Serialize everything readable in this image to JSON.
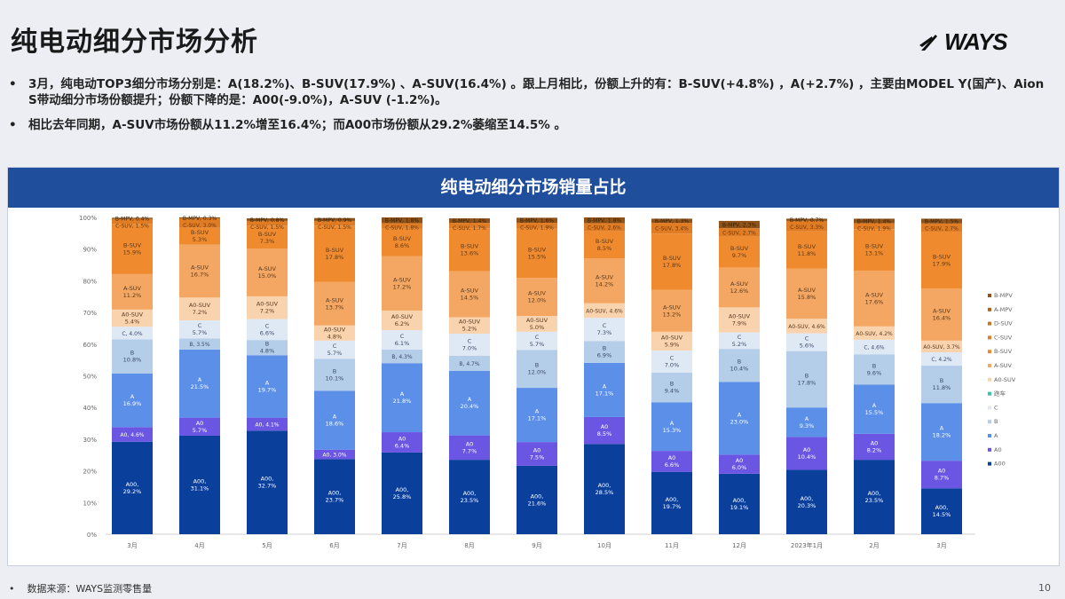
{
  "header": {
    "title": "纯电动细分市场分析",
    "logo_text": "WAYS"
  },
  "bullets": [
    "3月，纯电动TOP3细分市场分别是：A(18.2%)、B-SUV(17.9%) 、A-SUV(16.4%) 。跟上月相比，份额上升的有：B-SUV(+4.8%) ，A(+2.7%) ，主要由MODEL Y(国产)、Aion S带动细分市场份额提升；份额下降的是：A00(-9.0%)，A-SUV (-1.2%)。",
    "相比去年同期，A-SUV市场份额从11.2%增至16.4%；而A00市场份额从29.2%萎缩至14.5% 。"
  ],
  "footer": {
    "source": "数据来源：WAYS监测零售量",
    "page": "10"
  },
  "chart_data": {
    "type": "bar",
    "stacked": true,
    "title": "纯电动细分市场销量占比",
    "xlabel": "",
    "ylabel": "",
    "ylim": [
      0,
      100
    ],
    "yticks": [
      "0%",
      "10%",
      "20%",
      "30%",
      "40%",
      "50%",
      "60%",
      "70%",
      "80%",
      "90%",
      "100%"
    ],
    "legend_position": "right",
    "legend": [
      "B-MPV",
      "A-MPV",
      "D-SUV",
      "C-SUV",
      "B-SUV",
      "A-SUV",
      "A0-SUV",
      "跑车",
      "C",
      "B",
      "A",
      "A0",
      "A00"
    ],
    "colors": {
      "A00": "#0b3f9c",
      "A0": "#6b55e3",
      "A": "#5c8fe8",
      "B": "#b4cde9",
      "C": "#dfe9f6",
      "跑车": "#35c4a8",
      "A0-SUV": "#f8d3ae",
      "A-SUV": "#f4a762",
      "B-SUV": "#ef8b2e",
      "C-SUV": "#e07c24",
      "D-SUV": "#c8742a",
      "A-MPV": "#b0651e",
      "B-MPV": "#8f531a"
    },
    "categories": [
      "3月",
      "4月",
      "5月",
      "6月",
      "7月",
      "8月",
      "9月",
      "10月",
      "11月",
      "12月",
      "2023年1月",
      "2月",
      "3月"
    ],
    "series": [
      {
        "name": "A00",
        "values": [
          29.2,
          31.1,
          32.7,
          23.7,
          25.8,
          23.5,
          21.6,
          28.5,
          19.7,
          19.1,
          20.3,
          23.5,
          14.5
        ]
      },
      {
        "name": "A0",
        "values": [
          4.6,
          5.7,
          4.1,
          3.0,
          6.4,
          7.7,
          7.5,
          8.5,
          6.6,
          6.0,
          10.4,
          8.2,
          8.7
        ]
      },
      {
        "name": "A",
        "values": [
          16.9,
          21.5,
          19.7,
          18.6,
          21.8,
          20.4,
          17.1,
          17.1,
          15.3,
          23.0,
          9.3,
          15.5,
          18.2
        ]
      },
      {
        "name": "B",
        "values": [
          10.8,
          3.5,
          4.8,
          10.1,
          4.3,
          4.7,
          12.0,
          6.9,
          9.4,
          10.4,
          17.8,
          9.6,
          11.8
        ]
      },
      {
        "name": "C",
        "values": [
          4.0,
          5.7,
          6.6,
          5.7,
          6.1,
          7.0,
          5.7,
          7.3,
          7.0,
          5.2,
          5.6,
          4.6,
          4.2
        ]
      },
      {
        "name": "A0-SUV",
        "values": [
          5.4,
          7.2,
          7.2,
          4.8,
          6.2,
          5.2,
          5.0,
          4.6,
          5.9,
          7.9,
          4.6,
          4.2,
          3.7
        ]
      },
      {
        "name": "A-SUV",
        "values": [
          11.2,
          16.7,
          15.0,
          13.7,
          17.2,
          14.5,
          12.0,
          14.2,
          13.2,
          12.6,
          15.8,
          17.6,
          16.4
        ]
      },
      {
        "name": "B-SUV",
        "values": [
          15.9,
          5.3,
          7.3,
          17.8,
          8.6,
          13.6,
          15.5,
          8.5,
          17.8,
          9.7,
          11.8,
          13.1,
          17.9
        ]
      },
      {
        "name": "C-SUV",
        "values": [
          1.5,
          3.0,
          1.5,
          1.5,
          1.8,
          1.7,
          1.9,
          2.6,
          3.4,
          2.7,
          3.3,
          1.9,
          2.7
        ]
      },
      {
        "name": "B-MPV",
        "values": [
          0.4,
          0.3,
          0.8,
          0.9,
          1.8,
          1.4,
          1.6,
          1.8,
          1.3,
          2.3,
          0.7,
          1.4,
          1.5
        ]
      }
    ]
  }
}
